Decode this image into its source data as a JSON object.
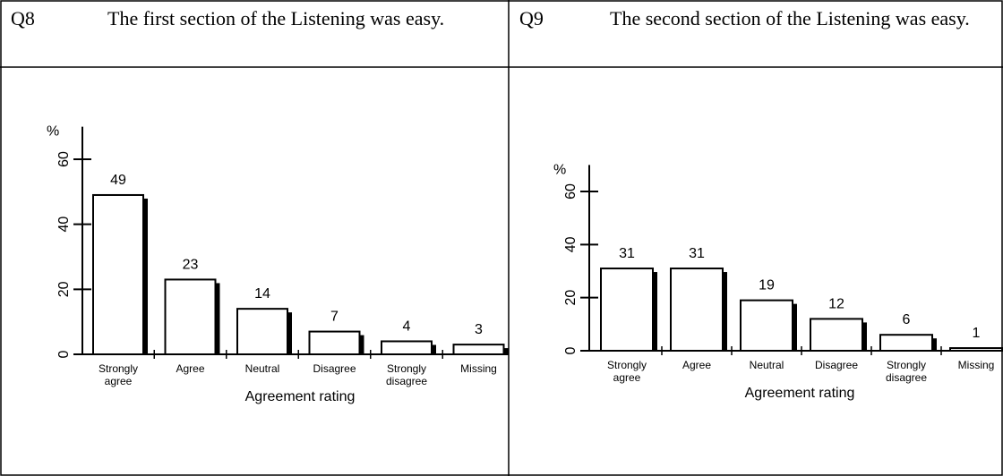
{
  "panels": [
    {
      "number": "Q8",
      "question": "The first section of the Listening was easy."
    },
    {
      "number": "Q9",
      "question": "The second section of the Listening was easy."
    }
  ],
  "chart_data": [
    {
      "type": "bar",
      "ylabel": "%",
      "xlabel": "Agreement rating",
      "categories": [
        "Strongly agree",
        "Agree",
        "Neutral",
        "Disagree",
        "Strongly disagree",
        "Missing"
      ],
      "values": [
        49,
        23,
        14,
        7,
        4,
        3
      ],
      "color": "#ffffff",
      "ylim": [
        0,
        70
      ],
      "yticks": [
        0,
        20,
        40,
        60
      ]
    },
    {
      "type": "bar",
      "ylabel": "%",
      "xlabel": "Agreement rating",
      "categories": [
        "Strongly agree",
        "Agree",
        "Neutral",
        "Disagree",
        "Strongly disagree",
        "Missing"
      ],
      "values": [
        31,
        31,
        19,
        12,
        6,
        1
      ],
      "color": "#ffffff",
      "ylim": [
        0,
        70
      ],
      "yticks": [
        0,
        20,
        40,
        60
      ]
    }
  ]
}
